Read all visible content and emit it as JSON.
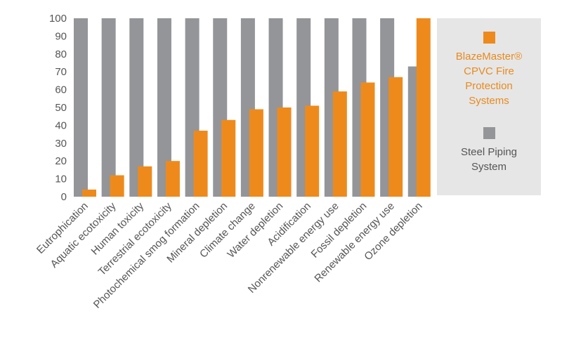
{
  "chart_data": {
    "type": "bar",
    "categories": [
      "Eutrophication",
      "Aquatic ecotoxicity",
      "Human toxicity",
      "Terrestrial ecotoxicity",
      "Photochemical smog formation",
      "Mineral depletion",
      "Climate change",
      "Water depletion",
      "Acidification",
      "Nonrenewable energy use",
      "Fossil depletion",
      "Renewable energy use",
      "Ozone depletion"
    ],
    "series": [
      {
        "name": "Steel Piping System",
        "color": "#939598",
        "values": [
          100,
          100,
          100,
          100,
          100,
          100,
          100,
          100,
          100,
          100,
          100,
          100,
          73
        ]
      },
      {
        "name": "BlazeMaster® CPVC Fire Protection Systems",
        "color": "#ee8a1c",
        "values": [
          4,
          12,
          17,
          20,
          37,
          43,
          49,
          50,
          51,
          59,
          64,
          67,
          100
        ]
      }
    ],
    "yticks": [
      0,
      10,
      20,
      30,
      40,
      50,
      60,
      70,
      80,
      90,
      100
    ],
    "ylim": [
      0,
      100
    ],
    "grid": false,
    "legend_position": "right"
  },
  "legend": {
    "entries": [
      {
        "label": "BlazeMaster® CPVC Fire Protection Systems",
        "color": "#ee8a1c",
        "text_color": "#e88a1e",
        "lines": [
          "BlazeMaster®",
          "CPVC Fire",
          "Protection",
          "Systems"
        ]
      },
      {
        "label": "Steel Piping System",
        "color": "#939598",
        "text_color": "#555555",
        "lines": [
          "Steel Piping",
          "System"
        ]
      }
    ]
  }
}
